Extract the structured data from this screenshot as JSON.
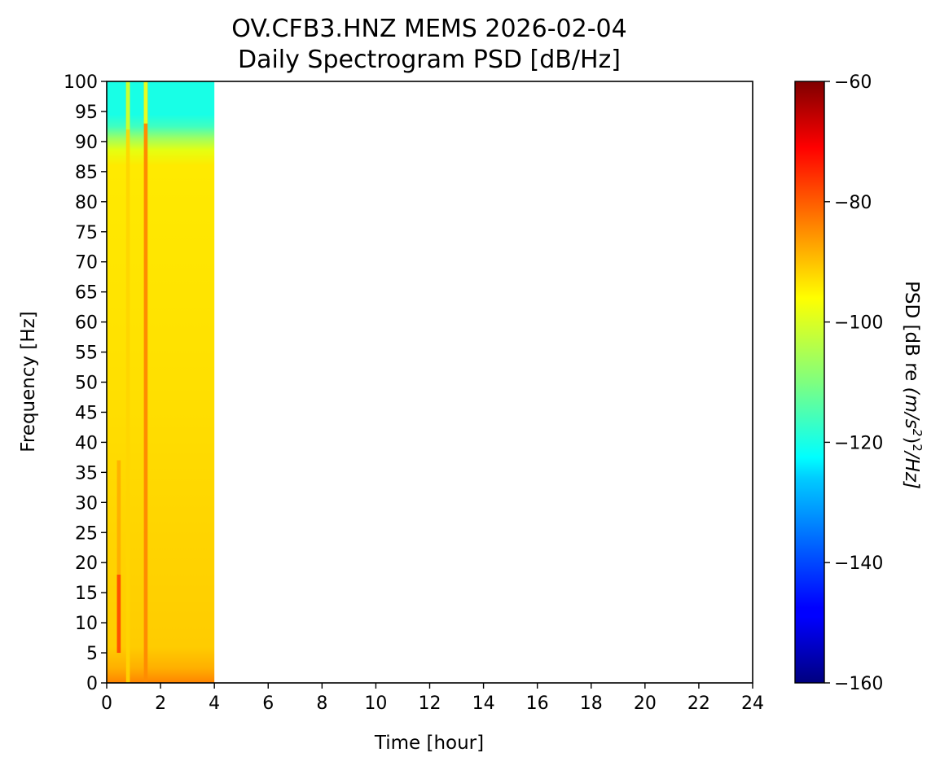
{
  "chart_data": {
    "type": "heatmap",
    "title": [
      "OV.CFB3.HNZ MEMS 2026-02-04",
      "Daily Spectrogram PSD [dB/Hz]"
    ],
    "xlabel": "Time [hour]",
    "ylabel": "Frequency [Hz]",
    "xlim": [
      0,
      24
    ],
    "ylim": [
      0,
      100
    ],
    "xticks": [
      "0",
      "2",
      "4",
      "6",
      "8",
      "10",
      "12",
      "14",
      "16",
      "18",
      "20",
      "22",
      "24"
    ],
    "yticks": [
      "0",
      "5",
      "10",
      "15",
      "20",
      "25",
      "30",
      "35",
      "40",
      "45",
      "50",
      "55",
      "60",
      "65",
      "70",
      "75",
      "80",
      "85",
      "90",
      "95",
      "100"
    ],
    "colorbar": {
      "label": "PSD [dB re (m/s²)²/Hz]",
      "label_parts": [
        "PSD [dB re ",
        "(m/s",
        "2",
        ")",
        "2",
        "/Hz]"
      ],
      "range": [
        -160,
        -60
      ],
      "ticks": [
        "−160",
        "−140",
        "−120",
        "−100",
        "−80",
        "−60"
      ],
      "colormap": "jet"
    },
    "data_extent_hours": [
      0,
      4.0
    ],
    "approx_psd_db": {
      "background": -92,
      "band_93_100_hz": -122,
      "band_88_93_hz": -105,
      "below_2_hz": -80,
      "stripe_0_8_h": -96,
      "stripe_1_45_h": -83,
      "patch_0_45_h_5_18_hz": -78
    }
  }
}
